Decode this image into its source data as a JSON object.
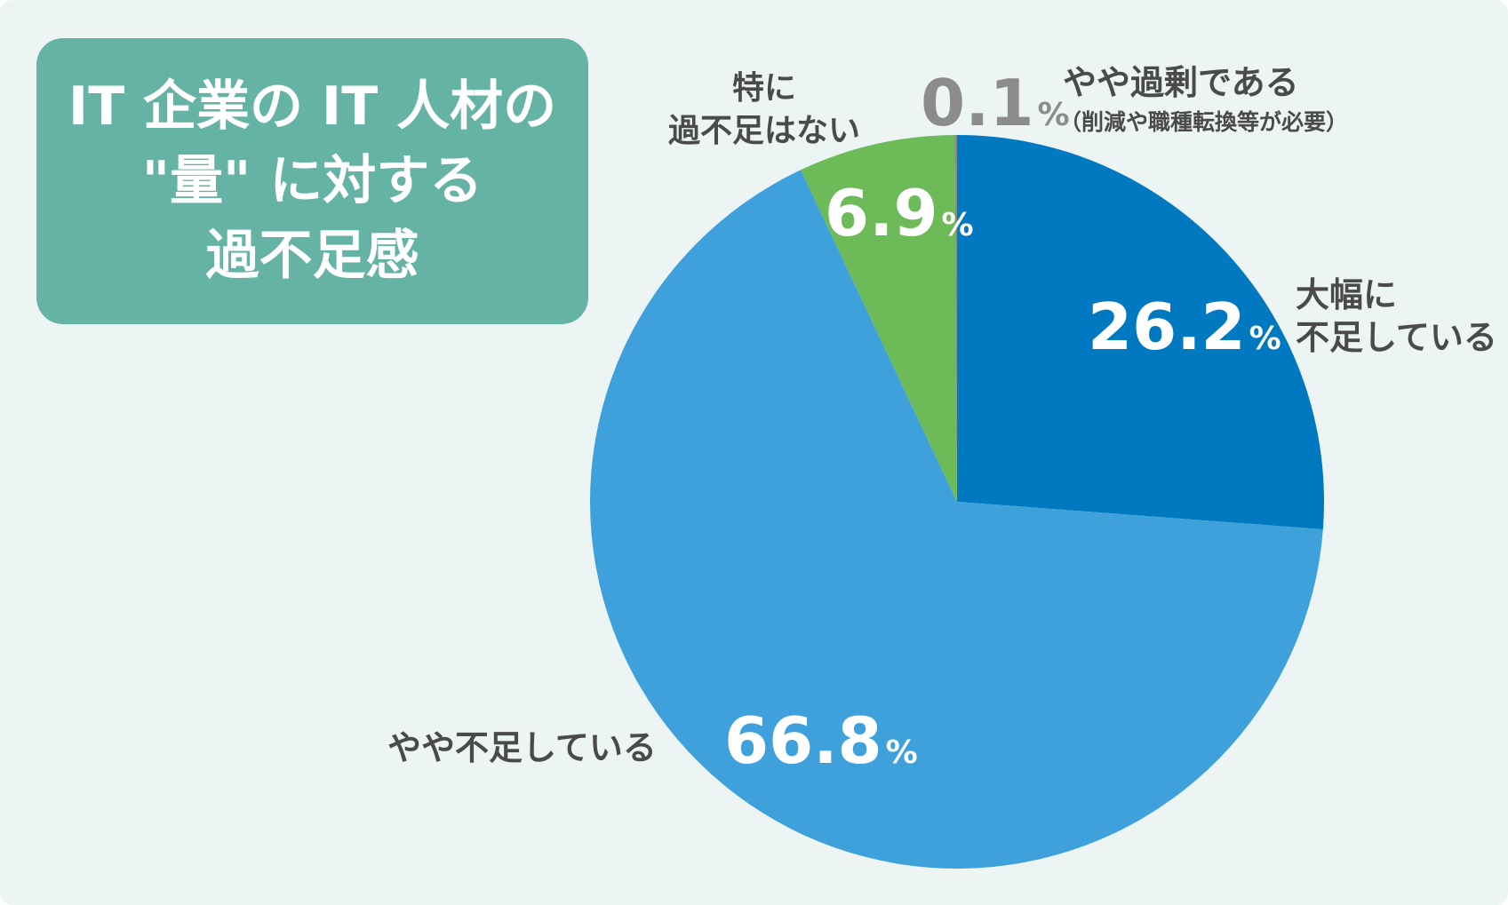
{
  "title_lines": [
    "IT 企業の IT 人材の",
    "\"量\" に対する",
    "過不足感"
  ],
  "colors": {
    "background": "#edf5f4",
    "title_box": "#64b3a5",
    "label_text": "#4a4a4a"
  },
  "chart_data": {
    "type": "pie",
    "title": "IT 企業の IT 人材の \"量\" に対する 過不足感",
    "start_angle_deg": 0,
    "direction": "clockwise",
    "unit": "%",
    "slices": [
      {
        "label_lines": [
          "大幅に",
          "不足している"
        ],
        "value": 26.2,
        "value_text": "26.2",
        "color": "#0079c1",
        "value_color": "#ffffff"
      },
      {
        "label_lines": [
          "やや不足している"
        ],
        "value": 66.8,
        "value_text": "66.8",
        "color": "#3fa1dc",
        "value_color": "#ffffff"
      },
      {
        "label_lines": [
          "特に",
          "過不足はない"
        ],
        "value": 6.9,
        "value_text": "6.9",
        "color": "#6cba58",
        "value_color": "#ffffff"
      },
      {
        "label_lines": [
          "やや過剰である",
          "（削減や職種転換等が必要）"
        ],
        "value": 0.1,
        "value_text": "0.1",
        "color": "#8a8a8a",
        "value_color": "#8c8c8c"
      }
    ]
  }
}
